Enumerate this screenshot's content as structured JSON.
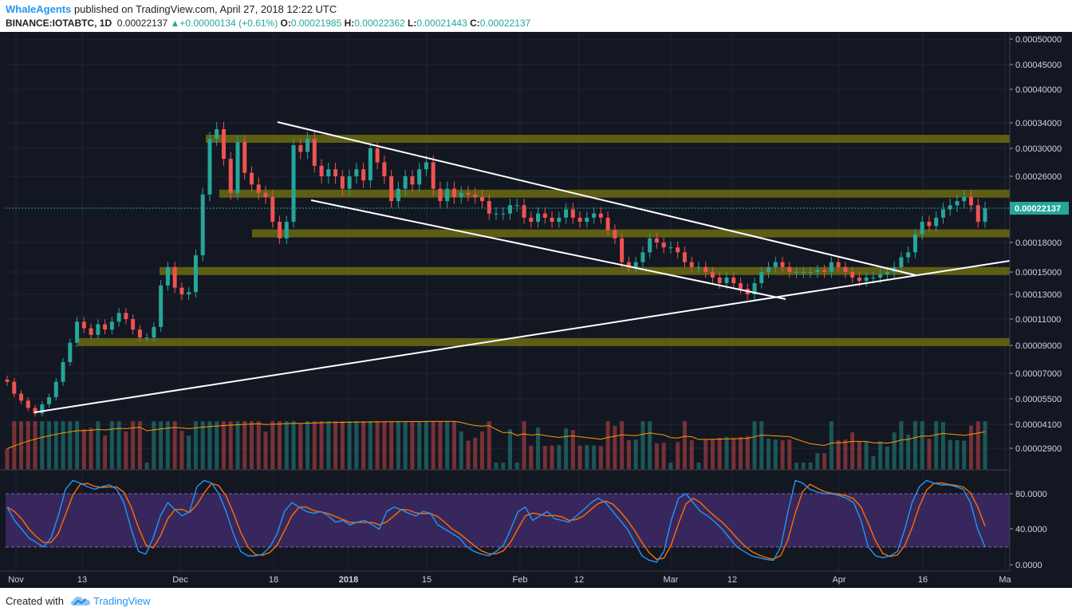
{
  "header": {
    "author": "WhaleAgents",
    "published_text": " published on TradingView.com, April 27, 2018 12:22 UTC",
    "symbol": "BINANCE:IOTABTC, 1D",
    "last": "0.00022137",
    "change": "+0.00000134 (+0.61%)",
    "o_label": "O:",
    "o": "0.00021985",
    "h_label": "H:",
    "h": "0.00022362",
    "l_label": "L:",
    "l": "0.00021443",
    "c_label": "C:",
    "c": "0.00022137"
  },
  "footer": {
    "created_with": "Created with",
    "brand": "TradingView"
  },
  "colors": {
    "background": "#131722",
    "up": "#26a69a",
    "down": "#ef5350",
    "zone": "#6b6b12",
    "stoch_k": "#2196f3",
    "stoch_d": "#ff6d00",
    "stoch_band": "#3f2a66",
    "price_tag": "#26a69a"
  },
  "chart_data": [
    {
      "type": "candlestick",
      "price_axis_ticks": [
        "0.00050000",
        "0.00045000",
        "0.00040000",
        "0.00034000",
        "0.00030000",
        "0.00026000",
        "0.00018000",
        "0.00015000",
        "0.00013000",
        "0.00011000",
        "0.00009000",
        "0.00007000",
        "0.00005500",
        "0.00004100",
        "0.00002900"
      ],
      "last_price_label": "0.00022137",
      "x_tick_labels": [
        "Nov",
        "13",
        "Dec",
        "18",
        "2018",
        "15",
        "Feb",
        "12",
        "Mar",
        "12",
        "Apr",
        "16",
        "Ma"
      ],
      "support_resistance_zones": [
        0.000315,
        0.000239,
        0.000191,
        0.000151,
        9.25e-05
      ],
      "close_series": [
        6.5e-05,
        5.8e-05,
        5.4e-05,
        5e-05,
        4.7e-05,
        5.2e-05,
        5.6e-05,
        6.5e-05,
        7.8e-05,
        9.2e-05,
        0.000108,
        0.000103,
        9.8e-05,
        0.000106,
        0.000102,
        0.000108,
        0.000115,
        0.00011,
        0.000102,
        9.6e-05,
        9.6e-05,
        0.000104,
        0.000138,
        0.000155,
        0.000136,
        0.00013,
        0.000132,
        0.000167,
        0.000238,
        0.000315,
        0.00033,
        0.000285,
        0.00024,
        0.00031,
        0.000265,
        0.00025,
        0.00024,
        0.000235,
        0.000205,
        0.000185,
        0.000205,
        0.000305,
        0.000295,
        0.000315,
        0.000275,
        0.00026,
        0.00027,
        0.00026,
        0.000245,
        0.00026,
        0.00027,
        0.000255,
        0.0003,
        0.00028,
        0.00026,
        0.00023,
        0.000245,
        0.00026,
        0.00025,
        0.00027,
        0.00028,
        0.000245,
        0.00023,
        0.000245,
        0.000235,
        0.00024,
        0.000238,
        0.000235,
        0.00023,
        0.000215,
        0.000215,
        0.000215,
        0.000225,
        0.000225,
        0.00021,
        0.000205,
        0.000215,
        0.00021,
        0.000205,
        0.00021,
        0.00022,
        0.00021,
        0.000205,
        0.00021,
        0.000215,
        0.00021,
        0.000195,
        0.000185,
        0.00016,
        0.000155,
        0.00016,
        0.00017,
        0.000185,
        0.00018,
        0.000175,
        0.000175,
        0.00017,
        0.00016,
        0.000155,
        0.000155,
        0.00015,
        0.000145,
        0.00014,
        0.000145,
        0.00014,
        0.000135,
        0.00013,
        0.00014,
        0.00015,
        0.000155,
        0.00016,
        0.000155,
        0.00015,
        0.00015,
        0.00015,
        0.00015,
        0.000152,
        0.00015,
        0.00016,
        0.000155,
        0.00015,
        0.000145,
        0.000142,
        0.000145,
        0.000145,
        0.000148,
        0.00015,
        0.000155,
        0.000165,
        0.00017,
        0.00019,
        0.000205,
        0.0002,
        0.00021,
        0.00022,
        0.000225,
        0.00023,
        0.000235,
        0.000225,
        0.000205,
        0.0002214
      ]
    },
    {
      "type": "line",
      "name": "stochastic",
      "yaxis_ticks": [
        "80.0000",
        "40.0000",
        "0.0000"
      ],
      "band": [
        20,
        80
      ],
      "k_series": [
        65,
        50,
        40,
        30,
        25,
        20,
        30,
        55,
        85,
        95,
        92,
        88,
        85,
        88,
        90,
        85,
        70,
        40,
        15,
        12,
        30,
        55,
        70,
        62,
        55,
        60,
        88,
        95,
        92,
        80,
        60,
        35,
        15,
        10,
        10,
        12,
        20,
        35,
        60,
        70,
        65,
        60,
        58,
        60,
        55,
        48,
        50,
        45,
        48,
        50,
        45,
        40,
        60,
        65,
        62,
        58,
        55,
        60,
        58,
        45,
        40,
        35,
        30,
        20,
        15,
        12,
        10,
        15,
        22,
        40,
        60,
        65,
        50,
        55,
        60,
        52,
        50,
        48,
        55,
        62,
        70,
        75,
        70,
        60,
        50,
        40,
        25,
        10,
        5,
        3,
        15,
        50,
        75,
        80,
        70,
        60,
        55,
        48,
        40,
        30,
        20,
        15,
        10,
        8,
        6,
        5,
        20,
        60,
        95,
        92,
        85,
        82,
        80,
        80,
        78,
        75,
        70,
        50,
        20,
        10,
        8,
        10,
        15,
        40,
        70,
        88,
        95,
        92,
        90,
        90,
        88,
        85,
        70,
        40,
        20
      ]
    }
  ]
}
